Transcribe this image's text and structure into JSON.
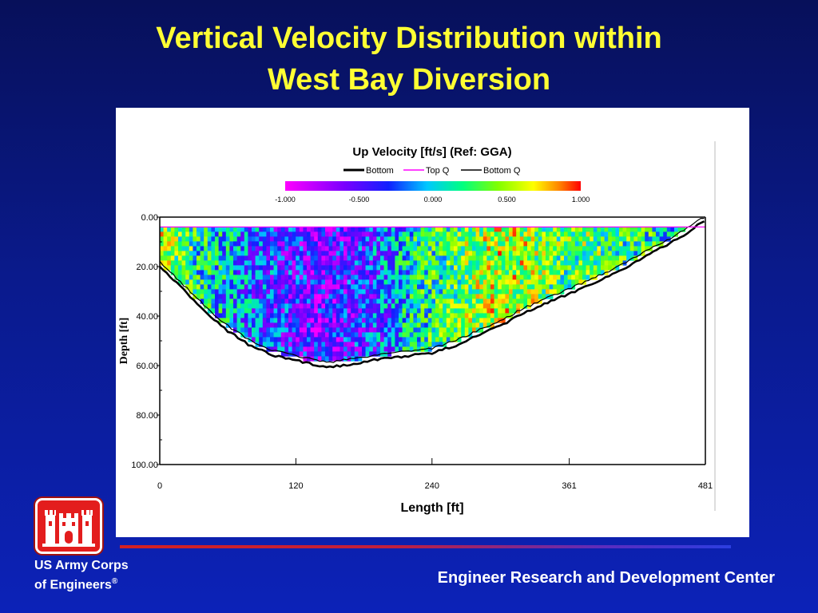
{
  "slide": {
    "title_line1": "Vertical Velocity Distribution within",
    "title_line2": "West Bay Diversion",
    "org_line1": "US Army Corps",
    "org_line2": "of Engineers",
    "org_mark": "®",
    "center": "Engineer Research and Development Center",
    "logo_icon": "castle-icon"
  },
  "colors": {
    "background": "#0a1a8c",
    "title": "#ffff33",
    "logo_red": "#e31d1d"
  },
  "chart_data": {
    "type": "heatmap",
    "title": "Up Velocity [ft/s] (Ref: GGA)",
    "xlabel": "Length [ft]",
    "ylabel": "Depth [ft]",
    "x_ticks": [
      "0",
      "120",
      "240",
      "361",
      "481"
    ],
    "x_tick_values": [
      0,
      120,
      240,
      361,
      481
    ],
    "y_ticks": [
      "0.00",
      "20.00",
      "40.00",
      "60.00",
      "80.00",
      "100.00"
    ],
    "y_tick_values": [
      0,
      20,
      40,
      60,
      80,
      100
    ],
    "xlim": [
      0,
      481
    ],
    "ylim": [
      100,
      0
    ],
    "legend": [
      {
        "label": "Bottom",
        "color": "#000000"
      },
      {
        "label": "Top Q",
        "color": "#ff00ff"
      },
      {
        "label": "Bottom Q",
        "color": "#000000"
      }
    ],
    "colorbar": {
      "range": [
        -1.0,
        1.0
      ],
      "tick_labels": [
        "-1.000",
        "-0.500",
        "0.000",
        "0.500",
        "1.000"
      ],
      "tick_values": [
        -1.0,
        -0.5,
        0.0,
        0.5,
        1.0
      ]
    },
    "bottom_profile": {
      "x": [
        0,
        20,
        40,
        60,
        80,
        100,
        120,
        140,
        150,
        160,
        180,
        200,
        220,
        240,
        260,
        280,
        300,
        320,
        340,
        361,
        380,
        400,
        420,
        440,
        460,
        475,
        481
      ],
      "depth": [
        20,
        29,
        38,
        46,
        52,
        56,
        58,
        60,
        60.5,
        60,
        58.5,
        57,
        56,
        55,
        52,
        48,
        44,
        39,
        35,
        31,
        27,
        23,
        18,
        13,
        8,
        3,
        1
      ]
    },
    "measured_region": {
      "top_depth": 4,
      "x_range": [
        0,
        481
      ]
    },
    "velocity_columns": {
      "x": [
        0,
        20,
        40,
        60,
        80,
        100,
        120,
        140,
        160,
        180,
        200,
        220,
        240,
        260,
        280,
        300,
        320,
        340,
        361,
        380,
        400,
        420,
        440,
        460,
        481
      ],
      "mean_up_velocity": [
        0.55,
        0.3,
        0.1,
        -0.05,
        -0.2,
        -0.35,
        -0.45,
        -0.55,
        -0.5,
        -0.4,
        -0.2,
        0.05,
        0.2,
        0.3,
        0.45,
        0.55,
        0.5,
        0.35,
        0.3,
        0.35,
        0.25,
        0.2,
        0.15,
        0.1,
        0.2
      ]
    }
  }
}
